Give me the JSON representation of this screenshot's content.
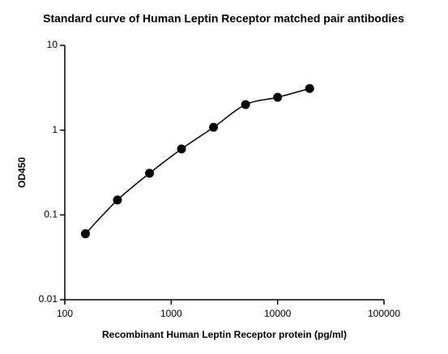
{
  "chart_data": {
    "type": "scatter",
    "title": "Standard curve of Human Leptin Receptor matched pair antibodies",
    "x_label": "Recombinant Human Leptin Receptor protein (pg/ml)",
    "y_label": "OD450",
    "x": [
      156.25,
      312.5,
      625,
      1250,
      2500,
      5000,
      10000,
      20000
    ],
    "values": [
      0.06,
      0.15,
      0.31,
      0.6,
      1.08,
      2.0,
      2.44,
      3.1
    ],
    "color": "#000000",
    "xlim": [
      100,
      100000
    ],
    "xticks": [
      100,
      1000,
      10000,
      100000
    ],
    "ylim": [
      0.01,
      10
    ],
    "yticks": [
      0.01,
      0.1,
      1,
      10
    ],
    "xscale": "log",
    "yscale": "log",
    "fit_curve": true
  }
}
